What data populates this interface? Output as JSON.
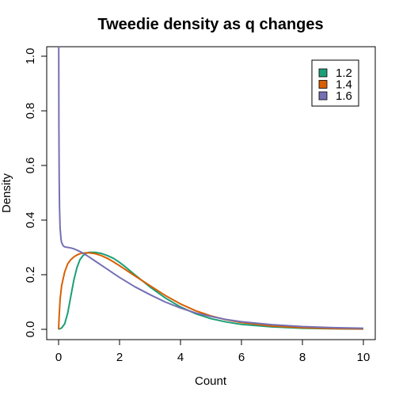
{
  "chart_data": {
    "type": "line",
    "title": "Tweedie density as q changes",
    "xlabel": "Count",
    "ylabel": "Density",
    "xlim": [
      0,
      10
    ],
    "ylim": [
      0,
      1.0
    ],
    "x_ticks": [
      "0",
      "2",
      "4",
      "6",
      "8",
      "10"
    ],
    "y_ticks": [
      "0.0",
      "0.2",
      "0.4",
      "0.6",
      "0.8",
      "1.0"
    ],
    "grid": false,
    "legend_position": "top-right",
    "series": [
      {
        "name": "1.2",
        "color": "#1b9e77",
        "x": [
          0,
          0.1,
          0.2,
          0.3,
          0.4,
          0.5,
          0.6,
          0.7,
          0.8,
          0.9,
          1.0,
          1.2,
          1.4,
          1.6,
          1.8,
          2.0,
          2.2,
          2.5,
          3.0,
          3.5,
          4.0,
          4.5,
          5.0,
          5.5,
          6.0,
          7.0,
          8.0,
          9.0,
          10.0
        ],
        "y": [
          0.0,
          0.005,
          0.02,
          0.06,
          0.12,
          0.18,
          0.225,
          0.255,
          0.27,
          0.278,
          0.282,
          0.282,
          0.278,
          0.27,
          0.26,
          0.245,
          0.228,
          0.2,
          0.155,
          0.115,
          0.082,
          0.057,
          0.039,
          0.027,
          0.018,
          0.009,
          0.004,
          0.002,
          0.001
        ]
      },
      {
        "name": "1.4",
        "color": "#d95f02",
        "x": [
          0,
          0.02,
          0.05,
          0.1,
          0.2,
          0.3,
          0.4,
          0.5,
          0.6,
          0.7,
          0.8,
          0.9,
          1.0,
          1.2,
          1.4,
          1.6,
          1.8,
          2.0,
          2.5,
          3.0,
          3.5,
          4.0,
          4.5,
          5.0,
          5.5,
          6.0,
          7.0,
          8.0,
          9.0,
          10.0
        ],
        "y": [
          0.0,
          0.05,
          0.11,
          0.16,
          0.21,
          0.24,
          0.255,
          0.265,
          0.272,
          0.277,
          0.279,
          0.28,
          0.28,
          0.277,
          0.27,
          0.26,
          0.247,
          0.233,
          0.196,
          0.16,
          0.124,
          0.093,
          0.068,
          0.049,
          0.035,
          0.025,
          0.012,
          0.006,
          0.003,
          0.0015
        ]
      },
      {
        "name": "1.6",
        "color": "#7570b3",
        "x": [
          0.005,
          0.01,
          0.02,
          0.03,
          0.05,
          0.08,
          0.1,
          0.15,
          0.2,
          0.3,
          0.4,
          0.5,
          0.6,
          0.7,
          0.8,
          0.9,
          1.0,
          1.2,
          1.4,
          1.6,
          1.8,
          2.0,
          2.5,
          3.0,
          3.5,
          4.0,
          4.5,
          5.0,
          5.5,
          6.0,
          7.0,
          8.0,
          9.0,
          10.0
        ],
        "y": [
          1.05,
          0.75,
          0.55,
          0.45,
          0.37,
          0.33,
          0.318,
          0.306,
          0.302,
          0.3,
          0.298,
          0.295,
          0.29,
          0.285,
          0.279,
          0.272,
          0.265,
          0.25,
          0.235,
          0.22,
          0.205,
          0.19,
          0.156,
          0.127,
          0.1,
          0.078,
          0.06,
          0.047,
          0.036,
          0.028,
          0.017,
          0.01,
          0.006,
          0.004
        ]
      }
    ]
  }
}
